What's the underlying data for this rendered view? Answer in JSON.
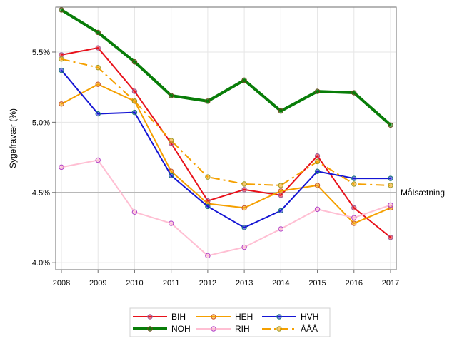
{
  "chart_data": {
    "type": "line",
    "title": "",
    "xlabel": "",
    "ylabel": "Sygefravær (%)",
    "x": [
      2008,
      2009,
      2010,
      2011,
      2012,
      2013,
      2014,
      2015,
      2016,
      2017
    ],
    "x_tick_labels": [
      "2008",
      "2009",
      "2010",
      "2011",
      "2012",
      "2013",
      "2014",
      "2015",
      "2016",
      "2017"
    ],
    "ylim": [
      3.95,
      5.82
    ],
    "y_ticks": [
      4.0,
      4.5,
      5.0,
      5.5
    ],
    "y_tick_labels": [
      "4.0%",
      "4.5%",
      "5.0%",
      "5.5%"
    ],
    "grid": true,
    "reference_line": {
      "value": 4.5,
      "label": "Målsætning",
      "color": "#b8b8b8"
    },
    "legend_position": "bottom-center",
    "series": [
      {
        "name": "BIH",
        "color": "#e8111b",
        "marker_color": "#9b5f9b",
        "style": "solid",
        "width": 2,
        "values": [
          5.48,
          5.53,
          5.22,
          4.85,
          4.44,
          4.52,
          4.48,
          4.76,
          4.39,
          4.18
        ]
      },
      {
        "name": "HEH",
        "color": "#f5a000",
        "marker_color": "#c8552f",
        "style": "solid",
        "width": 2,
        "values": [
          5.13,
          5.27,
          5.15,
          4.65,
          4.42,
          4.39,
          4.51,
          4.55,
          4.28,
          4.39
        ]
      },
      {
        "name": "HVH",
        "color": "#1515d4",
        "marker_color": "#1a7a7a",
        "style": "solid",
        "width": 2,
        "values": [
          5.37,
          5.06,
          5.07,
          4.62,
          4.4,
          4.25,
          4.37,
          4.65,
          4.6,
          4.6
        ]
      },
      {
        "name": "NOH",
        "color": "#087d08",
        "marker_color": "#6a4a1a",
        "style": "solid",
        "width": 4,
        "values": [
          5.8,
          5.64,
          5.43,
          5.19,
          5.15,
          5.3,
          5.08,
          5.22,
          5.21,
          4.98
        ]
      },
      {
        "name": "RIH",
        "color": "#ffbfd3",
        "marker_color": "#b040c8",
        "style": "solid",
        "width": 2,
        "values": [
          4.68,
          4.73,
          4.36,
          4.28,
          4.05,
          4.11,
          4.24,
          4.38,
          4.32,
          4.41
        ]
      },
      {
        "name": "ÅÅÅ",
        "color": "#f5a000",
        "marker_color": "#9a9a2a",
        "style": "dashdot",
        "width": 2,
        "values": [
          5.45,
          5.39,
          5.15,
          4.87,
          4.61,
          4.56,
          4.55,
          4.72,
          4.56,
          4.55
        ]
      }
    ]
  }
}
